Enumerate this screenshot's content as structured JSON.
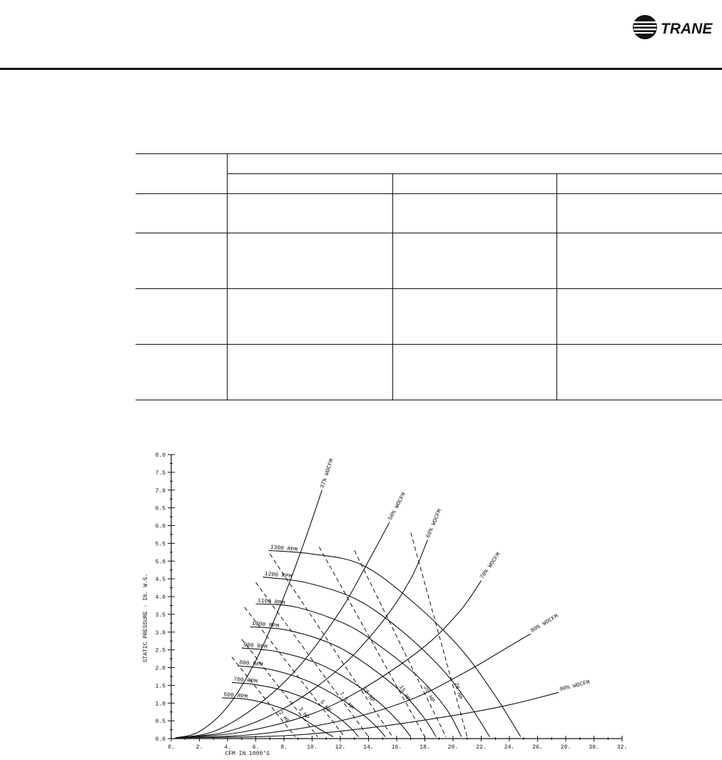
{
  "brand": {
    "name": "TRANE",
    "color": "#111111",
    "logo_icon": "trane-swoosh-globe-icon"
  },
  "table": {
    "rows": 5,
    "columns": 4,
    "cells_empty": true
  },
  "chart_data": {
    "type": "line",
    "title": "",
    "xlabel": "CFM IN  1000'S",
    "ylabel": "STATIC PRESSURE - IN. W.G.",
    "xlim": [
      0,
      32
    ],
    "ylim": [
      0,
      8
    ],
    "x_ticks": [
      "0.",
      "2.",
      "4.",
      "6.",
      "8.",
      "10.",
      "12.",
      "14.",
      "16.",
      "18.",
      "20.",
      "22.",
      "24.",
      "26.",
      "28.",
      "30.",
      "32."
    ],
    "y_ticks": [
      "0.0",
      "0.5",
      "1.0",
      "1.5",
      "2.0",
      "2.5",
      "3.0",
      "3.5",
      "4.0",
      "4.5",
      "5.0",
      "5.5",
      "6.0",
      "6.5",
      "7.0",
      "7.5",
      "8.0"
    ],
    "grid": false,
    "rpm_curves": [
      {
        "name": "600 RPM",
        "points": [
          [
            3.6,
            1.15
          ],
          [
            5.5,
            1.1
          ],
          [
            7.5,
            0.9
          ],
          [
            9.0,
            0.65
          ],
          [
            10.3,
            0.32
          ],
          [
            11.5,
            0.05
          ]
        ]
      },
      {
        "name": "700 RPM",
        "points": [
          [
            4.3,
            1.58
          ],
          [
            6.0,
            1.52
          ],
          [
            8.0,
            1.35
          ],
          [
            10.0,
            1.05
          ],
          [
            11.5,
            0.7
          ],
          [
            12.6,
            0.35
          ],
          [
            13.3,
            0.05
          ]
        ]
      },
      {
        "name": "800 RPM",
        "points": [
          [
            4.7,
            2.05
          ],
          [
            7.0,
            1.95
          ],
          [
            9.5,
            1.65
          ],
          [
            11.5,
            1.25
          ],
          [
            13.2,
            0.8
          ],
          [
            14.4,
            0.4
          ],
          [
            15.2,
            0.05
          ]
        ]
      },
      {
        "name": "900 RPM",
        "points": [
          [
            5.0,
            2.55
          ],
          [
            7.5,
            2.45
          ],
          [
            10.5,
            2.1
          ],
          [
            13.0,
            1.55
          ],
          [
            14.8,
            1.0
          ],
          [
            16.2,
            0.45
          ],
          [
            17.0,
            0.05
          ]
        ]
      },
      {
        "name": "1000 RPM",
        "points": [
          [
            5.6,
            3.15
          ],
          [
            8.3,
            3.05
          ],
          [
            11.5,
            2.65
          ],
          [
            14.0,
            2.05
          ],
          [
            16.5,
            1.25
          ],
          [
            18.0,
            0.55
          ],
          [
            18.8,
            0.05
          ]
        ]
      },
      {
        "name": "1100 RPM",
        "points": [
          [
            6.0,
            3.8
          ],
          [
            8.9,
            3.7
          ],
          [
            12.5,
            3.2
          ],
          [
            15.0,
            2.55
          ],
          [
            17.5,
            1.75
          ],
          [
            19.5,
            0.85
          ],
          [
            20.6,
            0.05
          ]
        ]
      },
      {
        "name": "1200 RPM",
        "points": [
          [
            6.5,
            4.55
          ],
          [
            9.5,
            4.4
          ],
          [
            13.0,
            3.95
          ],
          [
            16.0,
            3.15
          ],
          [
            19.0,
            2.05
          ],
          [
            21.0,
            1.05
          ],
          [
            22.6,
            0.05
          ]
        ]
      },
      {
        "name": "1300 RPM",
        "points": [
          [
            6.9,
            5.3
          ],
          [
            10.0,
            5.2
          ],
          [
            13.5,
            4.9
          ],
          [
            17.0,
            3.9
          ],
          [
            20.5,
            2.55
          ],
          [
            23.0,
            1.2
          ],
          [
            24.8,
            0.05
          ]
        ]
      }
    ],
    "wocfm_curves": [
      {
        "name": "37% WOCFM",
        "points": [
          [
            0.3,
            0.02
          ],
          [
            2.0,
            0.2
          ],
          [
            4.0,
            0.9
          ],
          [
            6.0,
            2.2
          ],
          [
            8.0,
            4.0
          ],
          [
            9.5,
            5.6
          ],
          [
            10.7,
            7.0
          ]
        ],
        "label": "37% WOCFM"
      },
      {
        "name": "50% WOCFM",
        "points": [
          [
            0.3,
            0.02
          ],
          [
            3.0,
            0.2
          ],
          [
            6.0,
            0.9
          ],
          [
            9.0,
            2.0
          ],
          [
            12.0,
            3.6
          ],
          [
            14.0,
            5.0
          ],
          [
            15.5,
            6.1
          ]
        ],
        "label": "50% WOCFM"
      },
      {
        "name": "60% WOCFM",
        "points": [
          [
            0.3,
            0.02
          ],
          [
            4.0,
            0.2
          ],
          [
            8.0,
            0.85
          ],
          [
            12.0,
            2.0
          ],
          [
            15.0,
            3.3
          ],
          [
            17.0,
            4.5
          ],
          [
            18.2,
            5.6
          ]
        ],
        "label": "60% WOCFM"
      },
      {
        "name": "70% WOCFM",
        "points": [
          [
            0.3,
            0.02
          ],
          [
            5.0,
            0.18
          ],
          [
            10.0,
            0.7
          ],
          [
            14.0,
            1.5
          ],
          [
            18.0,
            2.6
          ],
          [
            20.5,
            3.6
          ],
          [
            22.0,
            4.45
          ]
        ],
        "label": "70% WOCFM"
      },
      {
        "name": "80% WOCFM",
        "points": [
          [
            0.3,
            0.02
          ],
          [
            6.0,
            0.12
          ],
          [
            12.0,
            0.5
          ],
          [
            17.0,
            1.1
          ],
          [
            21.0,
            1.9
          ],
          [
            24.0,
            2.6
          ],
          [
            25.5,
            2.95
          ]
        ],
        "label": "80% WOCFM"
      },
      {
        "name": "90% WOCFM",
        "points": [
          [
            0.3,
            0.02
          ],
          [
            8.0,
            0.08
          ],
          [
            14.0,
            0.3
          ],
          [
            20.0,
            0.65
          ],
          [
            24.0,
            0.95
          ],
          [
            27.5,
            1.3
          ]
        ],
        "label": "90% WOCFM"
      }
    ],
    "hp_lines": [
      {
        "name": "2 HP",
        "from": [
          4.3,
          2.3
        ],
        "to": [
          8.8,
          0.05
        ]
      },
      {
        "name": "3 HP",
        "from": [
          5.0,
          2.8
        ],
        "to": [
          10.4,
          0.05
        ]
      },
      {
        "name": "5 HP",
        "from": [
          5.2,
          3.7
        ],
        "to": [
          12.3,
          0.05
        ]
      },
      {
        "name": "7.5 HP",
        "from": [
          6.0,
          4.4
        ],
        "to": [
          14.0,
          0.05
        ]
      },
      {
        "name": "10 HP",
        "from": [
          7.0,
          5.2
        ],
        "to": [
          15.7,
          0.05
        ]
      },
      {
        "name": "15 HP",
        "from": [
          10.5,
          5.4
        ],
        "to": [
          18.0,
          0.05
        ]
      },
      {
        "name": "20 HP",
        "from": [
          13.0,
          5.3
        ],
        "to": [
          19.5,
          0.05
        ]
      },
      {
        "name": "25 HP",
        "from": [
          17.0,
          5.8
        ],
        "to": [
          21.0,
          0.05
        ]
      }
    ]
  }
}
